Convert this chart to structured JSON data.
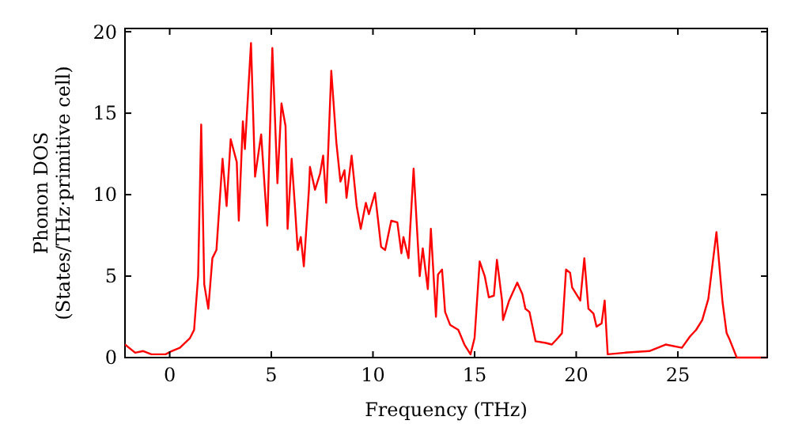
{
  "chart_data": {
    "type": "line",
    "xlabel": "Frequency (THz)",
    "ylabel": "Phonon DOS\n(States/THz·primitive cell)",
    "xlim": [
      -2.2,
      29.4
    ],
    "ylim": [
      0,
      20.2
    ],
    "xticks": [
      0,
      5,
      10,
      15,
      20,
      25
    ],
    "yticks": [
      0,
      5,
      10,
      15,
      20
    ],
    "grid": false,
    "marker": "none",
    "line_style": "solid",
    "series": [
      {
        "color": "#ff0000",
        "x": [
          -2.2,
          -1.7,
          -1.3,
          -0.9,
          -0.2,
          0.1,
          0.5,
          1.0,
          1.2,
          1.4,
          1.55,
          1.7,
          1.9,
          2.1,
          2.3,
          2.6,
          2.8,
          3.0,
          3.3,
          3.4,
          3.6,
          3.7,
          4.0,
          4.2,
          4.5,
          4.8,
          5.05,
          5.3,
          5.5,
          5.7,
          5.8,
          6.0,
          6.15,
          6.3,
          6.45,
          6.6,
          6.85,
          6.9,
          7.15,
          7.4,
          7.55,
          7.7,
          7.95,
          8.2,
          8.4,
          8.6,
          8.7,
          8.95,
          9.2,
          9.4,
          9.65,
          9.8,
          10.1,
          10.4,
          10.6,
          10.9,
          11.2,
          11.4,
          11.5,
          11.75,
          12.0,
          12.3,
          12.45,
          12.7,
          12.85,
          13.1,
          13.2,
          13.4,
          13.55,
          13.8,
          14.2,
          14.5,
          14.8,
          15.0,
          15.25,
          15.5,
          15.7,
          15.95,
          16.1,
          16.35,
          16.4,
          16.7,
          17.1,
          17.35,
          17.5,
          17.7,
          18.0,
          18.5,
          18.8,
          19.1,
          19.3,
          19.5,
          19.7,
          19.8,
          20.2,
          20.4,
          20.6,
          20.85,
          21.0,
          21.25,
          21.4,
          21.55,
          22.4,
          23.6,
          24.4,
          25.2,
          25.6,
          25.9,
          26.2,
          26.5,
          26.9,
          27.2,
          27.4,
          27.55,
          27.9,
          29.4
        ],
        "values": [
          0.8,
          0.3,
          0.4,
          0.2,
          0.2,
          0.4,
          0.6,
          1.2,
          1.7,
          5,
          14.3,
          4.5,
          3,
          6.1,
          6.6,
          12.2,
          9.3,
          13.4,
          12,
          8.4,
          14.5,
          12.8,
          19.3,
          11.1,
          13.7,
          8.1,
          19,
          10.7,
          15.6,
          14.2,
          7.9,
          12.2,
          9.5,
          6.6,
          7.4,
          5.6,
          10.3,
          11.7,
          10.3,
          11.3,
          12.4,
          9.5,
          17.6,
          13.2,
          10.8,
          11.5,
          9.8,
          12.4,
          9.3,
          7.9,
          9.5,
          8.8,
          10.1,
          6.8,
          6.6,
          8.4,
          8.3,
          6.4,
          7.4,
          6.1,
          11.6,
          5,
          6.7,
          4.2,
          7.9,
          2.5,
          5.1,
          5.4,
          2.8,
          2,
          1.7,
          0.8,
          0.2,
          1.2,
          5.9,
          5,
          3.7,
          3.8,
          6,
          3.5,
          2.3,
          3.5,
          4.6,
          3.9,
          3,
          2.8,
          1,
          0.9,
          0.8,
          1.2,
          1.5,
          5.4,
          5.2,
          4.3,
          3.5,
          6.1,
          3,
          2.7,
          1.9,
          2.1,
          3.5,
          0.2,
          0.3,
          0.4,
          0.8,
          0.6,
          1.3,
          1.7,
          2.3,
          3.6,
          7.7,
          3.4,
          1.5,
          1.1,
          0,
          0
        ]
      }
    ]
  }
}
